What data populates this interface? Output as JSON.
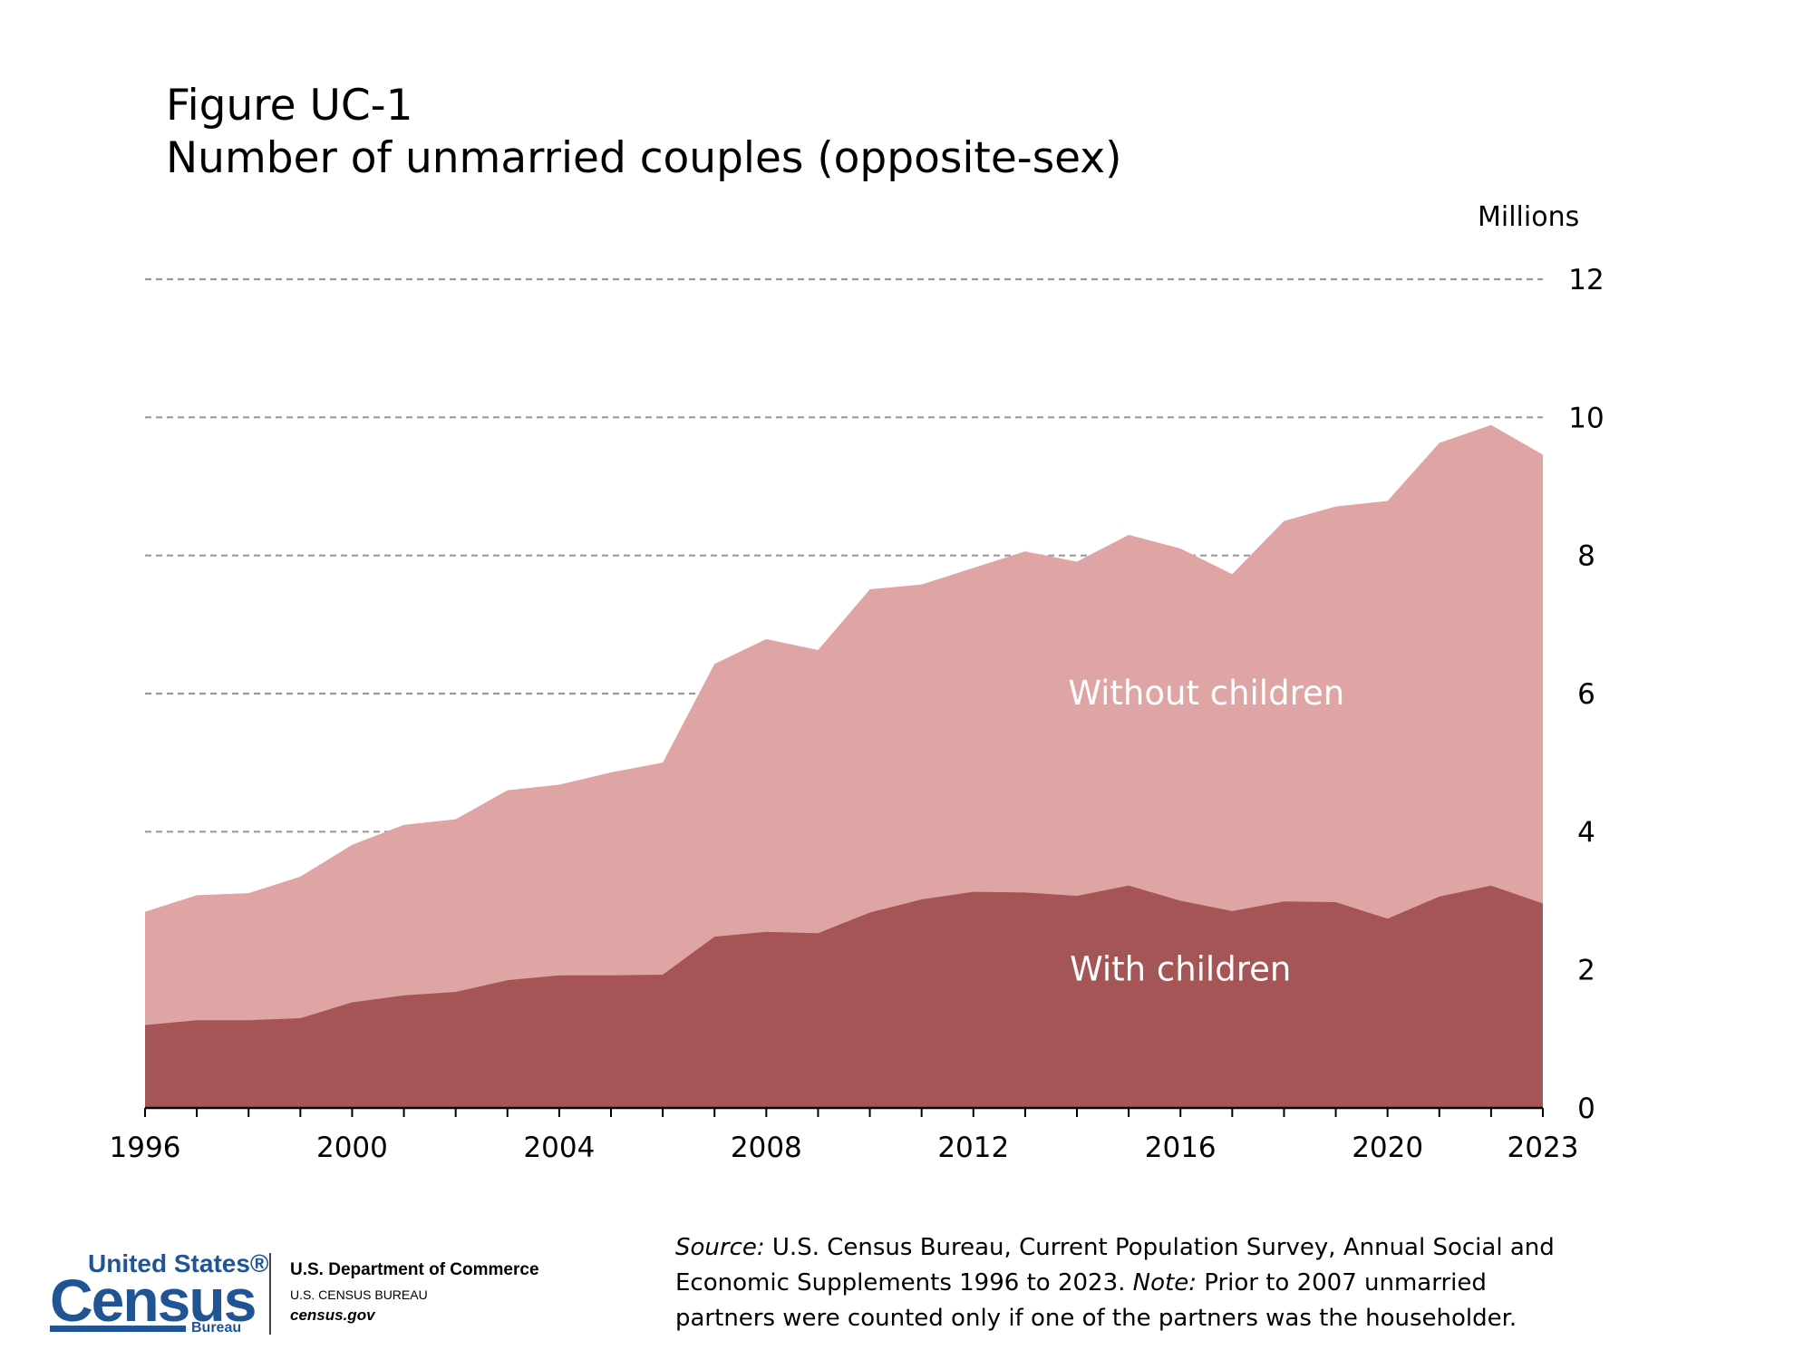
{
  "header": {
    "figure_label": "Figure UC-1",
    "title": "Number of unmarried couples (opposite-sex)"
  },
  "colors": {
    "with_children": "#a55555",
    "without_children": "#dea5a4",
    "grid": "#9a9a9a"
  },
  "chart_data": {
    "type": "area",
    "stacked": true,
    "ylabel": "Millions",
    "ylim": [
      0,
      12
    ],
    "yticks": [
      0,
      2,
      4,
      6,
      8,
      10,
      12
    ],
    "xlim": [
      1996,
      2023
    ],
    "xticks": [
      1996,
      2000,
      2004,
      2008,
      2012,
      2016,
      2020,
      2023
    ],
    "grid": "horizontal dashed",
    "x": [
      1996,
      1997,
      1998,
      1999,
      2000,
      2001,
      2002,
      2003,
      2004,
      2005,
      2006,
      2007,
      2008,
      2009,
      2010,
      2011,
      2012,
      2013,
      2014,
      2015,
      2016,
      2017,
      2018,
      2019,
      2020,
      2021,
      2022,
      2023
    ],
    "series": [
      {
        "name": "With children",
        "values": [
          1.2,
          1.27,
          1.27,
          1.3,
          1.53,
          1.63,
          1.68,
          1.85,
          1.92,
          1.92,
          1.93,
          2.48,
          2.55,
          2.53,
          2.83,
          3.02,
          3.13,
          3.12,
          3.07,
          3.22,
          3.0,
          2.85,
          2.99,
          2.98,
          2.74,
          3.06,
          3.22,
          2.96
        ]
      },
      {
        "name": "Without children",
        "values": [
          1.64,
          1.81,
          1.84,
          2.05,
          2.28,
          2.47,
          2.5,
          2.75,
          2.76,
          2.94,
          3.07,
          3.95,
          4.24,
          4.1,
          4.68,
          4.56,
          4.69,
          4.94,
          4.84,
          5.08,
          5.1,
          4.88,
          5.51,
          5.73,
          6.05,
          6.57,
          6.67,
          6.5
        ]
      }
    ],
    "annotations": [
      {
        "text": "Without children",
        "x": 2016.5,
        "y": 6.0
      },
      {
        "text": "With children",
        "x": 2016.0,
        "y": 2.0
      }
    ]
  },
  "footer": {
    "source_label": "Source:",
    "source_text": " U.S. Census Bureau, Current Population Survey, Annual Social and Economic Supplements 1996 to 2023. ",
    "note_label": "Note:",
    "note_text": " Prior to 2007 unmarried partners were counted only if one of the partners was the householder.",
    "logo": {
      "united_states": "United States®",
      "census": "Census",
      "bureau": "Bureau",
      "department": "U.S. Department of Commerce",
      "bureau_caps": "U.S. CENSUS BUREAU",
      "website": "census.gov"
    }
  }
}
